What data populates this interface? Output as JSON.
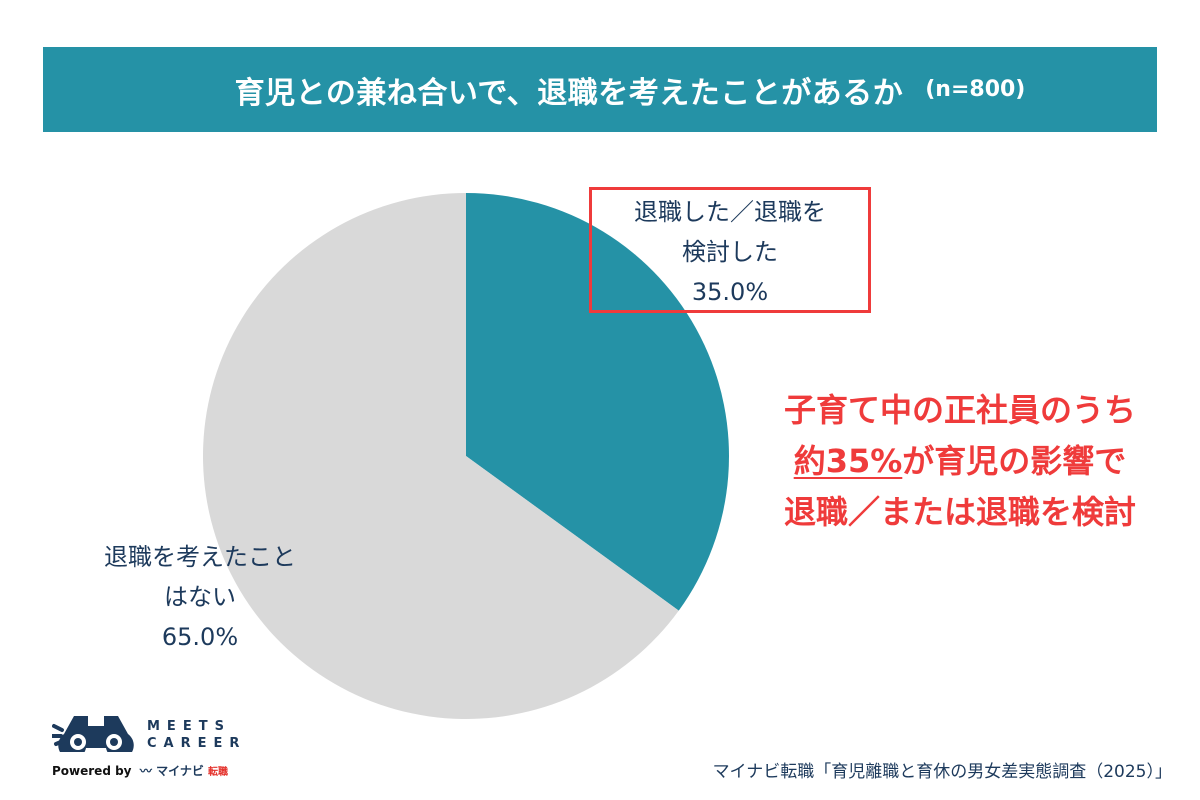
{
  "header": {
    "title": "育児との兼ね合いで、退職を考えたことがあるか",
    "sample_size": "(n=800)"
  },
  "chart_data": {
    "type": "pie",
    "title": "育児との兼ね合いで、退職を考えたことがあるか",
    "sample_size": 800,
    "categories": [
      "退職した／退職を検討した",
      "退職を考えたことはない"
    ],
    "values": [
      35.0,
      65.0
    ],
    "unit": "%",
    "colors": [
      "#2592a6",
      "#d9d9d9"
    ],
    "start_angle_deg": 0,
    "direction": "clockwise",
    "legend": "none (inline labels)"
  },
  "labels": {
    "slice_a": {
      "line1": "退職した／退職を",
      "line2": "検討した",
      "value": "35.0%"
    },
    "slice_b": {
      "line1": "退職を考えたこと",
      "line2": "はない",
      "value": "65.0%"
    }
  },
  "callout": {
    "line1": "子育て中の正社員のうち",
    "line2_emph": "約35%",
    "line2_rest": "が育児の影響で",
    "line3": "退職／または退職を検討"
  },
  "logo": {
    "name_line1": "MEETS",
    "name_line2": "CAREER",
    "powered_by": "Powered by",
    "brand": "マイナビ",
    "brand_sub": "転職"
  },
  "source": "マイナビ転職「育児離職と育休の男女差実態調査（2025）」",
  "colors": {
    "accent": "#2592a6",
    "slice_other": "#d9d9d9",
    "highlight": "#ef3b3b",
    "text": "#1d3a5c"
  }
}
